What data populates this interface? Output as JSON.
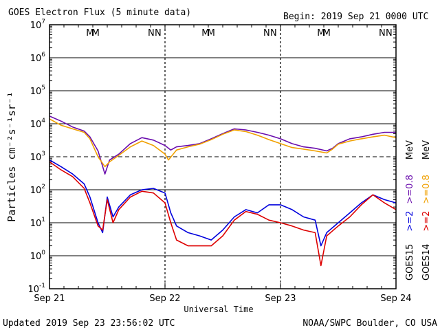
{
  "header": {
    "title": "GOES Electron Flux (5 minute data)",
    "begin": "Begin: 2019 Sep 21 0000 UTC"
  },
  "footer": {
    "updated": "Updated 2019 Sep 23 23:56:02 UTC",
    "source": "NOAA/SWPC Boulder, CO USA"
  },
  "chart_data": {
    "type": "line",
    "title": "GOES Electron Flux (5 minute data)",
    "xlabel": "Universal Time",
    "ylabel": "Particles cm⁻²s⁻¹sr⁻¹",
    "y_scale": "log",
    "ylim": [
      0.1,
      10000000
    ],
    "xlim": [
      0,
      3
    ],
    "x_unit": "days since 2019 Sep 21 0000 UTC",
    "x_ticks": [
      {
        "x": 0,
        "label": "Sep 21"
      },
      {
        "x": 1,
        "label": "Sep 22"
      },
      {
        "x": 2,
        "label": "Sep 23"
      },
      {
        "x": 3,
        "label": "Sep 24"
      }
    ],
    "y_ticks": [
      {
        "exp": 7,
        "base": "10",
        "sup": "7"
      },
      {
        "exp": 6,
        "base": "10",
        "sup": "6"
      },
      {
        "exp": 5,
        "base": "10",
        "sup": "5"
      },
      {
        "exp": 4,
        "base": "10",
        "sup": "4"
      },
      {
        "exp": 3,
        "base": "10",
        "sup": "3"
      },
      {
        "exp": 2,
        "base": "10",
        "sup": "2"
      },
      {
        "exp": 1,
        "base": "10",
        "sup": "1"
      },
      {
        "exp": 0,
        "base": "10",
        "sup": "0"
      },
      {
        "exp": -1,
        "base": "10",
        "sup": "-1"
      }
    ],
    "threshold_lines": [
      1000
    ],
    "grid": "horizontal decades",
    "day_markers": [
      1,
      2
    ],
    "mn_markers": [
      {
        "label": "M",
        "x": 0.35,
        "color": "#dd0000"
      },
      {
        "label": "M",
        "x": 0.4,
        "color": "#0000dd"
      },
      {
        "label": "N",
        "x": 0.88,
        "color": "#dd0000"
      },
      {
        "label": "N",
        "x": 0.94,
        "color": "#0000dd"
      },
      {
        "label": "M",
        "x": 1.35,
        "color": "#dd0000"
      },
      {
        "label": "M",
        "x": 1.4,
        "color": "#0000dd"
      },
      {
        "label": "N",
        "x": 1.88,
        "color": "#dd0000"
      },
      {
        "label": "N",
        "x": 1.94,
        "color": "#0000dd"
      },
      {
        "label": "M",
        "x": 2.35,
        "color": "#dd0000"
      },
      {
        "label": "M",
        "x": 2.4,
        "color": "#0000dd"
      },
      {
        "label": "N",
        "x": 2.88,
        "color": "#dd0000"
      },
      {
        "label": "N",
        "x": 2.94,
        "color": "#0000dd"
      }
    ],
    "legend": [
      {
        "label": "GOES15",
        "color": "#000000"
      },
      {
        "label": ">=2",
        "color": "#0000dd"
      },
      {
        "label": ">=0.8",
        "color": "#6a0dad"
      },
      {
        "label": "MeV",
        "color": "#000000"
      },
      {
        "label": "GOES14",
        "color": "#000000"
      },
      {
        "label": ">=2",
        "color": "#dd0000"
      },
      {
        "label": ">=0.8",
        "color": "#f0a000"
      },
      {
        "label": "MeV",
        "color": "#000000"
      }
    ],
    "series": [
      {
        "name": "GOES15 >=0.8 MeV",
        "color": "#6a0dad",
        "x": [
          0,
          0.1,
          0.2,
          0.3,
          0.35,
          0.42,
          0.48,
          0.52,
          0.6,
          0.7,
          0.8,
          0.9,
          1.0,
          1.05,
          1.1,
          1.2,
          1.3,
          1.4,
          1.5,
          1.6,
          1.7,
          1.8,
          1.9,
          2.0,
          2.1,
          2.2,
          2.3,
          2.4,
          2.45,
          2.5,
          2.6,
          2.7,
          2.8,
          2.9,
          3.0
        ],
        "values": [
          17000,
          12000,
          8000,
          6000,
          4000,
          1500,
          300,
          800,
          1200,
          2500,
          3800,
          3200,
          2200,
          1600,
          2000,
          2200,
          2500,
          3500,
          5000,
          7000,
          6500,
          5500,
          4500,
          3500,
          2500,
          2000,
          1800,
          1500,
          1800,
          2500,
          3500,
          4000,
          4800,
          5500,
          5500
        ]
      },
      {
        "name": "GOES14 >=0.8 MeV",
        "color": "#f0a000",
        "x": [
          0,
          0.1,
          0.2,
          0.3,
          0.35,
          0.42,
          0.48,
          0.52,
          0.6,
          0.7,
          0.8,
          0.9,
          1.0,
          1.03,
          1.1,
          1.2,
          1.3,
          1.4,
          1.5,
          1.6,
          1.7,
          1.8,
          1.9,
          2.0,
          2.1,
          2.2,
          2.3,
          2.4,
          2.45,
          2.5,
          2.6,
          2.7,
          2.8,
          2.9,
          3.0
        ],
        "values": [
          14000,
          9000,
          7000,
          5500,
          3500,
          1000,
          500,
          700,
          1100,
          2000,
          3000,
          2200,
          1200,
          800,
          1600,
          2000,
          2400,
          3300,
          4800,
          6500,
          5800,
          4500,
          3300,
          2500,
          1900,
          1700,
          1500,
          1300,
          1700,
          2400,
          3000,
          3500,
          4000,
          4500,
          3800
        ]
      },
      {
        "name": "GOES15 >=2 MeV",
        "color": "#0000dd",
        "x": [
          0,
          0.1,
          0.2,
          0.3,
          0.35,
          0.42,
          0.46,
          0.5,
          0.55,
          0.6,
          0.7,
          0.8,
          0.9,
          1.0,
          1.05,
          1.1,
          1.2,
          1.3,
          1.4,
          1.5,
          1.6,
          1.7,
          1.8,
          1.9,
          2.0,
          2.1,
          2.2,
          2.3,
          2.35,
          2.4,
          2.5,
          2.6,
          2.7,
          2.8,
          2.9,
          3.0
        ],
        "values": [
          800,
          500,
          300,
          150,
          60,
          10,
          5,
          60,
          15,
          30,
          70,
          100,
          110,
          80,
          20,
          8,
          5,
          4,
          3,
          6,
          15,
          25,
          20,
          35,
          35,
          25,
          15,
          12,
          2,
          5,
          10,
          20,
          40,
          70,
          50,
          40
        ]
      },
      {
        "name": "GOES14 >=2 MeV",
        "color": "#dd0000",
        "x": [
          0,
          0.1,
          0.2,
          0.3,
          0.35,
          0.42,
          0.46,
          0.5,
          0.55,
          0.6,
          0.7,
          0.8,
          0.9,
          1.0,
          1.05,
          1.1,
          1.2,
          1.3,
          1.4,
          1.5,
          1.6,
          1.7,
          1.8,
          1.9,
          2.0,
          2.1,
          2.2,
          2.3,
          2.35,
          2.4,
          2.5,
          2.6,
          2.7,
          2.8,
          2.9,
          3.0
        ],
        "values": [
          700,
          400,
          250,
          110,
          40,
          8,
          6,
          50,
          10,
          25,
          60,
          90,
          80,
          40,
          10,
          3,
          2,
          2,
          2,
          4,
          12,
          22,
          18,
          12,
          10,
          8,
          6,
          5,
          0.5,
          4,
          8,
          15,
          35,
          70,
          40,
          25
        ]
      }
    ]
  }
}
